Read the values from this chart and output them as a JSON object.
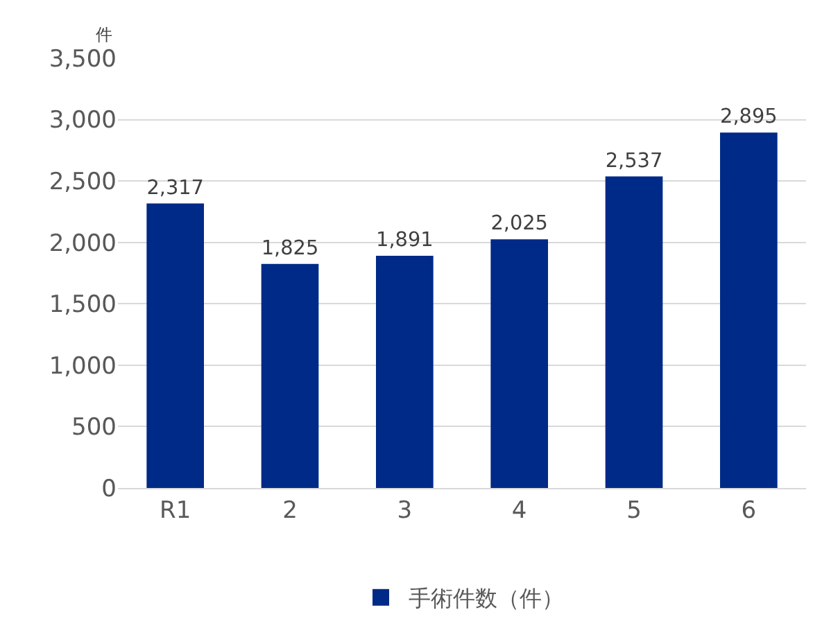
{
  "chart_data": {
    "type": "bar",
    "ylabel": "件",
    "categories": [
      "R1",
      "2",
      "3",
      "4",
      "5",
      "6"
    ],
    "series": [
      {
        "name": "手術件数（件）",
        "color": "#002a87",
        "values": [
          2317,
          1825,
          1891,
          2025,
          2537,
          2895
        ],
        "value_labels": [
          "2,317",
          "1,825",
          "1,891",
          "2,025",
          "2,537",
          "2,895"
        ]
      }
    ],
    "ylim": [
      0,
      3500
    ],
    "yticks": [
      {
        "value": 0,
        "label": "0"
      },
      {
        "value": 500,
        "label": "500"
      },
      {
        "value": 1000,
        "label": "1,000"
      },
      {
        "value": 1500,
        "label": "1,500"
      },
      {
        "value": 2000,
        "label": "2,000"
      },
      {
        "value": 2500,
        "label": "2,500"
      },
      {
        "value": 3000,
        "label": "3,000"
      },
      {
        "value": 3500,
        "label": "3,500"
      }
    ],
    "grid": "y",
    "legend": "bottom"
  }
}
